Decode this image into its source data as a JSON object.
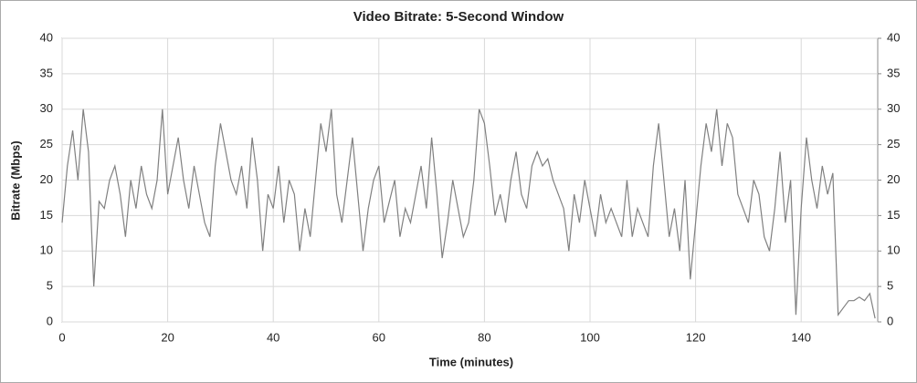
{
  "chart_data": {
    "type": "line",
    "title": "Video Bitrate: 5-Second Window",
    "x_label": "Time (minutes)",
    "y_label": "Bitrate (Mbps)",
    "x": [
      0,
      1,
      2,
      3,
      4,
      5,
      6,
      7,
      8,
      9,
      10,
      11,
      12,
      13,
      14,
      15,
      16,
      17,
      18,
      19,
      20,
      21,
      22,
      23,
      24,
      25,
      26,
      27,
      28,
      29,
      30,
      31,
      32,
      33,
      34,
      35,
      36,
      37,
      38,
      39,
      40,
      41,
      42,
      43,
      44,
      45,
      46,
      47,
      48,
      49,
      50,
      51,
      52,
      53,
      54,
      55,
      56,
      57,
      58,
      59,
      60,
      61,
      62,
      63,
      64,
      65,
      66,
      67,
      68,
      69,
      70,
      71,
      72,
      73,
      74,
      75,
      76,
      77,
      78,
      79,
      80,
      81,
      82,
      83,
      84,
      85,
      86,
      87,
      88,
      89,
      90,
      91,
      92,
      93,
      94,
      95,
      96,
      97,
      98,
      99,
      100,
      101,
      102,
      103,
      104,
      105,
      106,
      107,
      108,
      109,
      110,
      111,
      112,
      113,
      114,
      115,
      116,
      117,
      118,
      119,
      120,
      121,
      122,
      123,
      124,
      125,
      126,
      127,
      128,
      129,
      130,
      131,
      132,
      133,
      134,
      135,
      136,
      137,
      138,
      139,
      140,
      141,
      142,
      143,
      144,
      145,
      146,
      147,
      148,
      149,
      150,
      151,
      152,
      153,
      154
    ],
    "series": [
      {
        "name": "Video Bitrate",
        "color": "#808080",
        "values": [
          14,
          22,
          27,
          20,
          30,
          24,
          5,
          17,
          16,
          20,
          22,
          18,
          12,
          20,
          16,
          22,
          18,
          16,
          20,
          30,
          18,
          22,
          26,
          20,
          16,
          22,
          18,
          14,
          12,
          22,
          28,
          24,
          20,
          18,
          22,
          16,
          26,
          20,
          10,
          18,
          16,
          22,
          14,
          20,
          18,
          10,
          16,
          12,
          20,
          28,
          24,
          30,
          18,
          14,
          20,
          26,
          18,
          10,
          16,
          20,
          22,
          14,
          17,
          20,
          12,
          16,
          14,
          18,
          22,
          16,
          26,
          18,
          9,
          14,
          20,
          16,
          12,
          14,
          20,
          30,
          28,
          22,
          15,
          18,
          14,
          20,
          24,
          18,
          16,
          22,
          24,
          22,
          23,
          20,
          18,
          16,
          10,
          18,
          14,
          20,
          16,
          12,
          18,
          14,
          16,
          14,
          12,
          20,
          12,
          16,
          14,
          12,
          22,
          28,
          20,
          12,
          16,
          10,
          20,
          6,
          14,
          22,
          28,
          24,
          30,
          22,
          28,
          26,
          18,
          16,
          14,
          20,
          18,
          12,
          10,
          16,
          24,
          14,
          20,
          1,
          16,
          26,
          20,
          16,
          22,
          18,
          21,
          1,
          2,
          3,
          3,
          3.5,
          3,
          4,
          0.5
        ]
      }
    ],
    "xlim": [
      0,
      154.5
    ],
    "xticks": [
      0,
      20,
      40,
      60,
      80,
      100,
      120,
      140
    ],
    "ylim": [
      0,
      40
    ],
    "yticks": [
      0,
      5,
      10,
      15,
      20,
      25,
      30,
      35,
      40
    ],
    "y2lim": [
      0,
      40
    ],
    "y2ticks": [
      0,
      5,
      10,
      15,
      20,
      25,
      30,
      35,
      40
    ],
    "grid": true
  }
}
